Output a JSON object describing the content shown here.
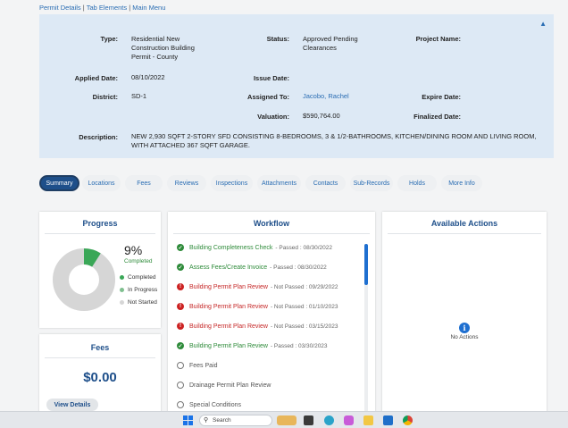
{
  "topnav": {
    "permit_details": "Permit Details",
    "sep": "|",
    "tab_elements": "Tab Elements",
    "main_menu": "Main Menu"
  },
  "details": {
    "type_label": "Type:",
    "type_value_1": "Residential New",
    "type_value_2": "Construction Building",
    "type_value_3": "Permit - County",
    "status_label": "Status:",
    "status_value_1": "Approved Pending",
    "status_value_2": "Clearances",
    "project_name_label": "Project Name:",
    "applied_label": "Applied Date:",
    "applied_value": "08/10/2022",
    "issue_label": "Issue Date:",
    "district_label": "District:",
    "district_value": "SD-1",
    "assigned_label": "Assigned To:",
    "assigned_value": "Jacobo, Rachel",
    "expire_label": "Expire Date:",
    "valuation_label": "Valuation:",
    "valuation_value": "$590,764.00",
    "finalized_label": "Finalized Date:",
    "description_label": "Description:",
    "description_1": "NEW 2,930 SQFT 2-STORY SFD CONSISTING 8-BEDROOMS, 3 & 1/2-BATHROOMS, KITCHEN/DINING ROOM AND LIVING ROOM,",
    "description_2": "WITH ATTACHED 367 SQFT GARAGE.",
    "collapse_icon": "chevron-up-icon"
  },
  "tabs": [
    "Summary",
    "Locations",
    "Fees",
    "Reviews",
    "Inspections",
    "Attachments",
    "Contacts",
    "Sub-Records",
    "Holds",
    "More Info"
  ],
  "progress": {
    "title": "Progress",
    "percent": 9,
    "percent_label": "9%",
    "completed_label": "Completed",
    "legend": [
      "Completed",
      "In Progress",
      "Not Started"
    ],
    "colors": {
      "completed": "#3aa757",
      "in_progress": "#7fbf8f",
      "not_started": "#d6d6d6"
    }
  },
  "fees": {
    "title": "Fees",
    "amount": "$0.00",
    "button": "View Details"
  },
  "workflow": {
    "title": "Workflow",
    "items": [
      {
        "name": "Building Completeness Check",
        "status": "- Passed : 08/30/2022",
        "state": "passed"
      },
      {
        "name": "Assess Fees/Create Invoice",
        "status": "- Passed : 08/30/2022",
        "state": "passed"
      },
      {
        "name": "Building Permit Plan Review",
        "status": "- Not Passed : 09/29/2022",
        "state": "failed"
      },
      {
        "name": "Building Permit Plan Review",
        "status": "- Not Passed : 01/10/2023",
        "state": "failed"
      },
      {
        "name": "Building Permit Plan Review",
        "status": "- Not Passed : 03/15/2023",
        "state": "failed"
      },
      {
        "name": "Building Permit Plan Review",
        "status": "- Passed : 03/30/2023",
        "state": "passed"
      },
      {
        "name": "Fees Paid",
        "status": "",
        "state": "pending"
      },
      {
        "name": "Drainage Permit Plan Review",
        "status": "",
        "state": "pending"
      },
      {
        "name": "Special Conditions",
        "status": "",
        "state": "pending"
      }
    ]
  },
  "actions": {
    "title": "Available Actions",
    "empty": "No Actions",
    "icon": "info-icon"
  },
  "taskbar": {
    "search": "Search"
  }
}
